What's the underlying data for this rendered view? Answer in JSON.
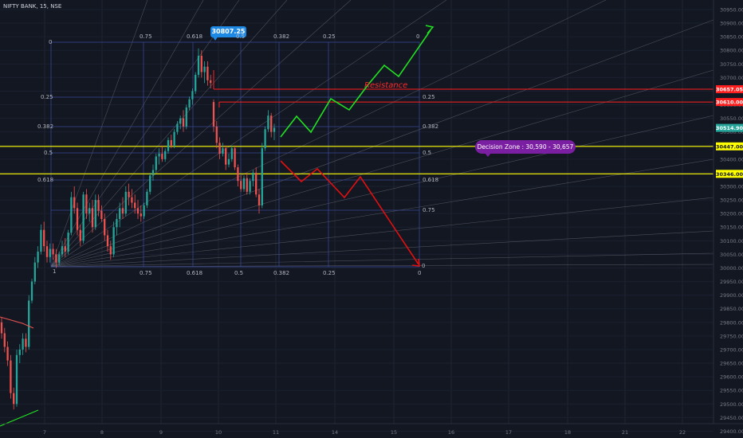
{
  "header": {
    "symbol_label": "NIFTY BANK, 15, NSE"
  },
  "colors": {
    "background": "#131722",
    "up_candle": "#26a69a",
    "down_candle": "#ef5350",
    "fib_grid": "#3a4aa0",
    "fan_line": "#787b86",
    "resistance": "#ff1f1f",
    "support": "#ffff00",
    "bull_path": "#22e022",
    "bear_path": "#e01010",
    "zone_callout": "#7b1fa2",
    "price_tag": "#1e88e5",
    "current_price": "#26a69a"
  },
  "chart_data": {
    "type": "candlestick",
    "ylim": [
      29375,
      30985
    ],
    "y_ticks": [
      29400,
      29450,
      29500,
      29550,
      29600,
      29650,
      29700,
      29750,
      29800,
      29850,
      29900,
      29950,
      30000,
      30050,
      30100,
      30150,
      30200,
      30250,
      30300,
      30350,
      30400,
      30450,
      30500,
      30550,
      30600,
      30650,
      30700,
      30750,
      30800,
      30850,
      30900,
      30950
    ],
    "y_tick_labels": [
      "29400.00",
      "29450.00",
      "29500.00",
      "29550.00",
      "29600.00",
      "29650.00",
      "29700.00",
      "29750.00",
      "29800.00",
      "29850.00",
      "29900.00",
      "29950.00",
      "30000.00",
      "30050.00",
      "30100.00",
      "30150.00",
      "30200.00",
      "30250.00",
      "30300.00",
      "30350.00",
      "30400.00",
      "30450.00",
      "30500.00",
      "30550.00",
      "30600.00",
      "30650.00",
      "30700.00",
      "30750.00",
      "30800.00",
      "30850.00",
      "30900.00",
      "30950.00"
    ],
    "x_ticks": [
      "7",
      "8",
      "9",
      "10",
      "11",
      "14",
      "15",
      "16",
      "17",
      "18",
      "21",
      "22"
    ],
    "price_tags": [
      {
        "id": "resistance-upper",
        "value": 30657.05,
        "label": "30657.05",
        "color": "#ff1f1f"
      },
      {
        "id": "resistance-lower",
        "value": 30610.0,
        "label": "30610.00",
        "color": "#ff1f1f"
      },
      {
        "id": "current",
        "value": 30514.9,
        "label": "30514.90",
        "color": "#26a69a"
      },
      {
        "id": "support-upper",
        "value": 30447.0,
        "label": "30447.00",
        "color": "#ffff00"
      },
      {
        "id": "support-lower",
        "value": 30346.0,
        "label": "30346.00",
        "color": "#ffff00"
      }
    ],
    "horizontal_lines": [
      {
        "name": "resistance-upper",
        "value": 30657.05,
        "color": "#ff1f1f"
      },
      {
        "name": "resistance-lower",
        "value": 30610.0,
        "color": "#ff1f1f"
      },
      {
        "name": "support-upper",
        "value": 30447.0,
        "color": "#ffff00"
      },
      {
        "name": "support-lower",
        "value": 30346.0,
        "color": "#ffff00"
      }
    ],
    "annotations": {
      "high_label": "30807.25",
      "resistance_text": "Resistance",
      "decision_zone_text": "Decision Zone : 30,590 - 30,657"
    },
    "fib_levels_left": [
      "0",
      "0.25",
      "0.382",
      "0.5",
      "0.618",
      "1"
    ],
    "fib_levels_right": [
      "0.25",
      "0.382",
      "0.5",
      "0.618",
      "0.75",
      "0"
    ],
    "fib_levels_top": [
      "0.75",
      "0.618",
      "0.5",
      "0.382",
      "0.25",
      "0"
    ],
    "fib_levels_bottom": [
      "0.75",
      "0.618",
      "0.5",
      "0.382",
      "0.25",
      "0"
    ],
    "candles": [
      {
        "o": 29800,
        "h": 29820,
        "l": 29740,
        "c": 29760
      },
      {
        "o": 29760,
        "h": 29780,
        "l": 29690,
        "c": 29710
      },
      {
        "o": 29710,
        "h": 29730,
        "l": 29640,
        "c": 29660
      },
      {
        "o": 29660,
        "h": 29680,
        "l": 29520,
        "c": 29540
      },
      {
        "o": 29540,
        "h": 29560,
        "l": 29480,
        "c": 29500
      },
      {
        "o": 29500,
        "h": 29700,
        "l": 29490,
        "c": 29680
      },
      {
        "o": 29680,
        "h": 29720,
        "l": 29650,
        "c": 29700
      },
      {
        "o": 29700,
        "h": 29760,
        "l": 29680,
        "c": 29740
      },
      {
        "o": 29740,
        "h": 29760,
        "l": 29690,
        "c": 29710
      },
      {
        "o": 29710,
        "h": 29900,
        "l": 29700,
        "c": 29880
      },
      {
        "o": 29880,
        "h": 29960,
        "l": 29870,
        "c": 29950
      },
      {
        "o": 29950,
        "h": 30040,
        "l": 29940,
        "c": 30020
      },
      {
        "o": 30020,
        "h": 30080,
        "l": 30000,
        "c": 30060
      },
      {
        "o": 30060,
        "h": 30160,
        "l": 30050,
        "c": 30140
      },
      {
        "o": 30140,
        "h": 30170,
        "l": 30060,
        "c": 30080
      },
      {
        "o": 30080,
        "h": 30100,
        "l": 30020,
        "c": 30040
      },
      {
        "o": 30040,
        "h": 30090,
        "l": 30020,
        "c": 30070
      },
      {
        "o": 30070,
        "h": 30090,
        "l": 30030,
        "c": 30050
      },
      {
        "o": 30050,
        "h": 30070,
        "l": 30000,
        "c": 30020
      },
      {
        "o": 30020,
        "h": 30060,
        "l": 30010,
        "c": 30050
      },
      {
        "o": 30050,
        "h": 30100,
        "l": 30040,
        "c": 30080
      },
      {
        "o": 30080,
        "h": 30110,
        "l": 30040,
        "c": 30060
      },
      {
        "o": 30060,
        "h": 30140,
        "l": 30050,
        "c": 30130
      },
      {
        "o": 30130,
        "h": 30280,
        "l": 30120,
        "c": 30260
      },
      {
        "o": 30260,
        "h": 30300,
        "l": 30200,
        "c": 30220
      },
      {
        "o": 30220,
        "h": 30240,
        "l": 30120,
        "c": 30140
      },
      {
        "o": 30140,
        "h": 30160,
        "l": 30080,
        "c": 30100
      },
      {
        "o": 30100,
        "h": 30280,
        "l": 30090,
        "c": 30270
      },
      {
        "o": 30270,
        "h": 30290,
        "l": 30180,
        "c": 30200
      },
      {
        "o": 30200,
        "h": 30240,
        "l": 30170,
        "c": 30220
      },
      {
        "o": 30220,
        "h": 30250,
        "l": 30130,
        "c": 30150
      },
      {
        "o": 30150,
        "h": 30270,
        "l": 30140,
        "c": 30250
      },
      {
        "o": 30250,
        "h": 30270,
        "l": 30190,
        "c": 30210
      },
      {
        "o": 30210,
        "h": 30230,
        "l": 30170,
        "c": 30180
      },
      {
        "o": 30180,
        "h": 30200,
        "l": 30100,
        "c": 30120
      },
      {
        "o": 30120,
        "h": 30140,
        "l": 30060,
        "c": 30080
      },
      {
        "o": 30080,
        "h": 30100,
        "l": 30030,
        "c": 30050
      },
      {
        "o": 30050,
        "h": 30170,
        "l": 30040,
        "c": 30150
      },
      {
        "o": 30150,
        "h": 30200,
        "l": 30120,
        "c": 30180
      },
      {
        "o": 30180,
        "h": 30240,
        "l": 30150,
        "c": 30220
      },
      {
        "o": 30220,
        "h": 30260,
        "l": 30180,
        "c": 30200
      },
      {
        "o": 30200,
        "h": 30300,
        "l": 30190,
        "c": 30280
      },
      {
        "o": 30280,
        "h": 30310,
        "l": 30230,
        "c": 30260
      },
      {
        "o": 30260,
        "h": 30290,
        "l": 30220,
        "c": 30240
      },
      {
        "o": 30240,
        "h": 30270,
        "l": 30200,
        "c": 30220
      },
      {
        "o": 30220,
        "h": 30250,
        "l": 30180,
        "c": 30200
      },
      {
        "o": 30200,
        "h": 30230,
        "l": 30170,
        "c": 30190
      },
      {
        "o": 30190,
        "h": 30240,
        "l": 30180,
        "c": 30230
      },
      {
        "o": 30230,
        "h": 30290,
        "l": 30220,
        "c": 30280
      },
      {
        "o": 30280,
        "h": 30350,
        "l": 30270,
        "c": 30340
      },
      {
        "o": 30340,
        "h": 30380,
        "l": 30320,
        "c": 30360
      },
      {
        "o": 30360,
        "h": 30420,
        "l": 30350,
        "c": 30410
      },
      {
        "o": 30410,
        "h": 30440,
        "l": 30380,
        "c": 30420
      },
      {
        "o": 30420,
        "h": 30450,
        "l": 30390,
        "c": 30400
      },
      {
        "o": 30400,
        "h": 30440,
        "l": 30390,
        "c": 30430
      },
      {
        "o": 30430,
        "h": 30480,
        "l": 30420,
        "c": 30470
      },
      {
        "o": 30470,
        "h": 30490,
        "l": 30440,
        "c": 30450
      },
      {
        "o": 30450,
        "h": 30510,
        "l": 30440,
        "c": 30500
      },
      {
        "o": 30500,
        "h": 30540,
        "l": 30490,
        "c": 30530
      },
      {
        "o": 30530,
        "h": 30560,
        "l": 30510,
        "c": 30550
      },
      {
        "o": 30550,
        "h": 30580,
        "l": 30500,
        "c": 30520
      },
      {
        "o": 30520,
        "h": 30600,
        "l": 30510,
        "c": 30590
      },
      {
        "o": 30590,
        "h": 30630,
        "l": 30580,
        "c": 30620
      },
      {
        "o": 30620,
        "h": 30660,
        "l": 30600,
        "c": 30650
      },
      {
        "o": 30650,
        "h": 30720,
        "l": 30640,
        "c": 30710
      },
      {
        "o": 30710,
        "h": 30807,
        "l": 30700,
        "c": 30780
      },
      {
        "o": 30780,
        "h": 30800,
        "l": 30700,
        "c": 30720
      },
      {
        "o": 30720,
        "h": 30760,
        "l": 30680,
        "c": 30740
      },
      {
        "o": 30740,
        "h": 30760,
        "l": 30670,
        "c": 30690
      },
      {
        "o": 30690,
        "h": 30710,
        "l": 30660,
        "c": 30680
      },
      {
        "o": 30610,
        "h": 30620,
        "l": 30500,
        "c": 30520
      },
      {
        "o": 30520,
        "h": 30540,
        "l": 30440,
        "c": 30460
      },
      {
        "o": 30460,
        "h": 30480,
        "l": 30400,
        "c": 30420
      },
      {
        "o": 30420,
        "h": 30460,
        "l": 30410,
        "c": 30440
      },
      {
        "o": 30440,
        "h": 30450,
        "l": 30360,
        "c": 30380
      },
      {
        "o": 30380,
        "h": 30420,
        "l": 30370,
        "c": 30400
      },
      {
        "o": 30400,
        "h": 30450,
        "l": 30390,
        "c": 30440
      },
      {
        "o": 30440,
        "h": 30450,
        "l": 30360,
        "c": 30370
      },
      {
        "o": 30370,
        "h": 30380,
        "l": 30300,
        "c": 30320
      },
      {
        "o": 30320,
        "h": 30340,
        "l": 30280,
        "c": 30290
      },
      {
        "o": 30290,
        "h": 30340,
        "l": 30280,
        "c": 30330
      },
      {
        "o": 30330,
        "h": 30350,
        "l": 30270,
        "c": 30280
      },
      {
        "o": 30280,
        "h": 30330,
        "l": 30270,
        "c": 30320
      },
      {
        "o": 30320,
        "h": 30360,
        "l": 30300,
        "c": 30350
      },
      {
        "o": 30350,
        "h": 30370,
        "l": 30260,
        "c": 30270
      },
      {
        "o": 30270,
        "h": 30290,
        "l": 30200,
        "c": 30230
      },
      {
        "o": 30230,
        "h": 30460,
        "l": 30220,
        "c": 30440
      },
      {
        "o": 30440,
        "h": 30520,
        "l": 30430,
        "c": 30510
      },
      {
        "o": 30510,
        "h": 30580,
        "l": 30500,
        "c": 30560
      },
      {
        "o": 30560,
        "h": 30570,
        "l": 30480,
        "c": 30500
      },
      {
        "o": 30500,
        "h": 30530,
        "l": 30470,
        "c": 30515
      }
    ]
  }
}
